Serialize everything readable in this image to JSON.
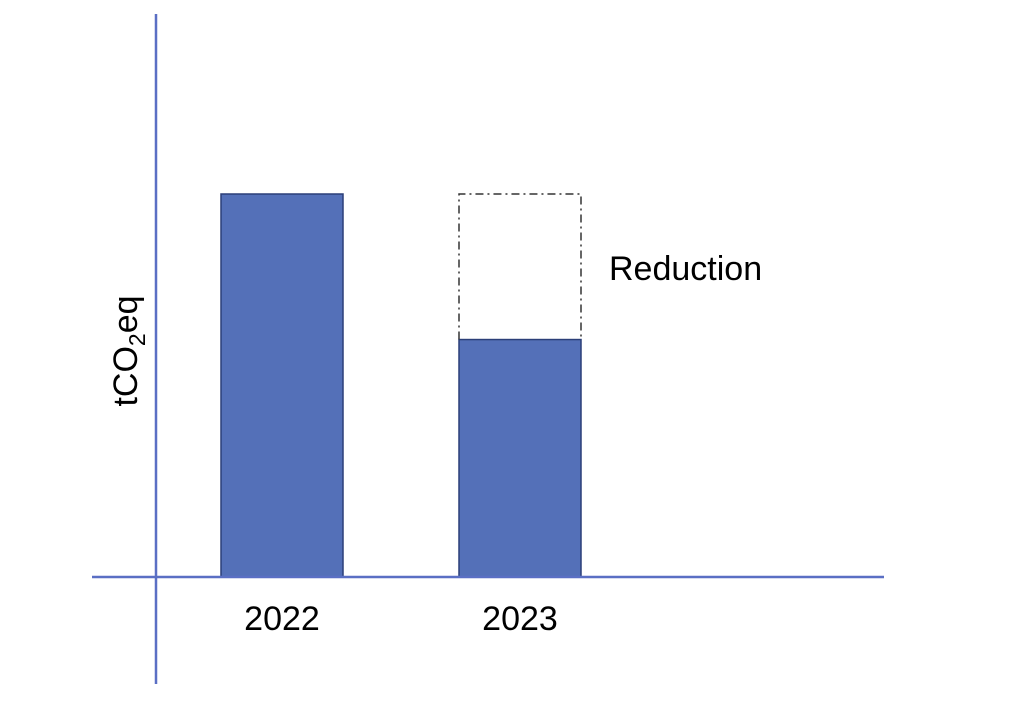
{
  "chart_data": {
    "type": "bar",
    "title": "",
    "xlabel": "",
    "ylabel": {
      "prefix": "tCO",
      "subscript": "2",
      "suffix": "eq"
    },
    "categories": [
      "2022",
      "2023"
    ],
    "values": [
      100,
      62
    ],
    "reduction": {
      "category": "2023",
      "from": 62,
      "to": 100,
      "label": "Reduction",
      "style": "dash-dot outline"
    },
    "ylim": [
      0,
      100
    ],
    "grid": false,
    "axis_ticks": false,
    "colors": {
      "bar_fill": "#5470b8",
      "bar_stroke": "#2b3f78",
      "axis": "#5a6fc4",
      "reduction_outline": "#333333"
    }
  }
}
